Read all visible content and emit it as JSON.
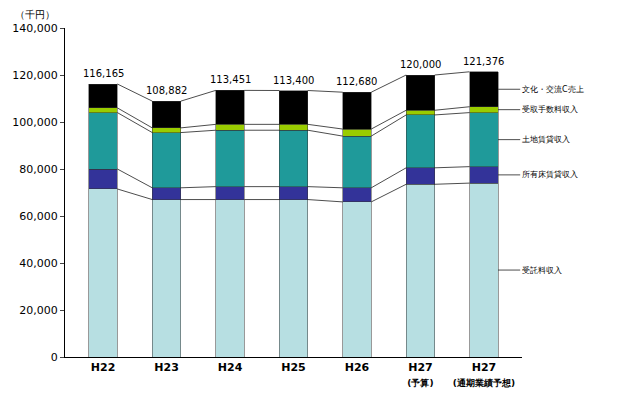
{
  "chart_data": {
    "type": "bar",
    "stacked": true,
    "ylabel": "（千円）",
    "categories": [
      "H22",
      "H23",
      "H24",
      "H25",
      "H26",
      "H27\n(予算)",
      "H27\n(通期業績予想)"
    ],
    "series": [
      {
        "name": "受託料収入",
        "color": "#b7dfe2",
        "values": [
          71500,
          67000,
          67000,
          67000,
          66000,
          73500,
          74000
        ]
      },
      {
        "name": "所有床賃貸収入",
        "color": "#333399",
        "values": [
          8500,
          5000,
          5500,
          5500,
          6000,
          7000,
          7000
        ]
      },
      {
        "name": "土地賃貸収入",
        "color": "#1f9a9a",
        "values": [
          24000,
          23500,
          24000,
          24000,
          22000,
          22500,
          23000
        ]
      },
      {
        "name": "受取手数料収入",
        "color": "#99cc00",
        "values": [
          2000,
          2000,
          2500,
          2500,
          3000,
          2000,
          2500
        ]
      },
      {
        "name": "文化・交流C売上",
        "color": "#000000",
        "values": [
          10165,
          11382,
          14451,
          14400,
          15680,
          15000,
          14876
        ]
      }
    ],
    "totals": [
      116165,
      108882,
      113451,
      113400,
      112680,
      120000,
      121376
    ],
    "total_labels": [
      "116,165",
      "108,882",
      "113,451",
      "113,400",
      "112,680",
      "120,000",
      "121,376"
    ],
    "ylim": [
      0,
      140000
    ],
    "yticks": [
      0,
      {
        "value": 20000,
        "label": "20,000"
      },
      {
        "value": 40000,
        "label": "40,000"
      },
      {
        "value": 60000,
        "label": "60,000"
      },
      {
        "value": 80000,
        "label": "80,000"
      },
      {
        "value": 100000,
        "label": "100,000"
      },
      {
        "value": 120000,
        "label": "120,000"
      },
      {
        "value": 140000,
        "label": "140,000"
      }
    ],
    "grid": false
  }
}
